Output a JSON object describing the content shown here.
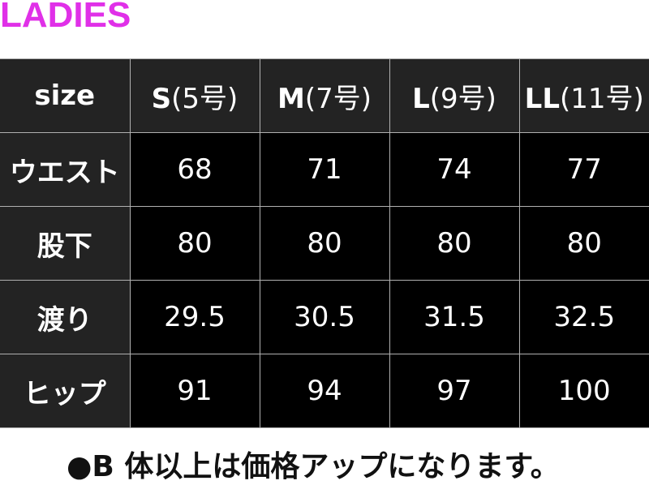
{
  "title": "LADIES",
  "title_color": "#e030e8",
  "table": {
    "header": {
      "label": "size",
      "columns": [
        {
          "size": "S",
          "note": "(5号)"
        },
        {
          "size": "M",
          "note": "(7号)"
        },
        {
          "size": "L",
          "note": "(9号)"
        },
        {
          "size": "LL",
          "note": "(11号)"
        }
      ]
    },
    "rows": [
      {
        "label": "ウエスト",
        "values": [
          "68",
          "71",
          "74",
          "77"
        ]
      },
      {
        "label": "股下",
        "values": [
          "80",
          "80",
          "80",
          "80"
        ]
      },
      {
        "label": "渡り",
        "values": [
          "29.5",
          "30.5",
          "31.5",
          "32.5"
        ]
      },
      {
        "label": "ヒップ",
        "values": [
          "91",
          "94",
          "97",
          "100"
        ]
      }
    ]
  },
  "footnote": "●B 体以上は価格アップになります。"
}
